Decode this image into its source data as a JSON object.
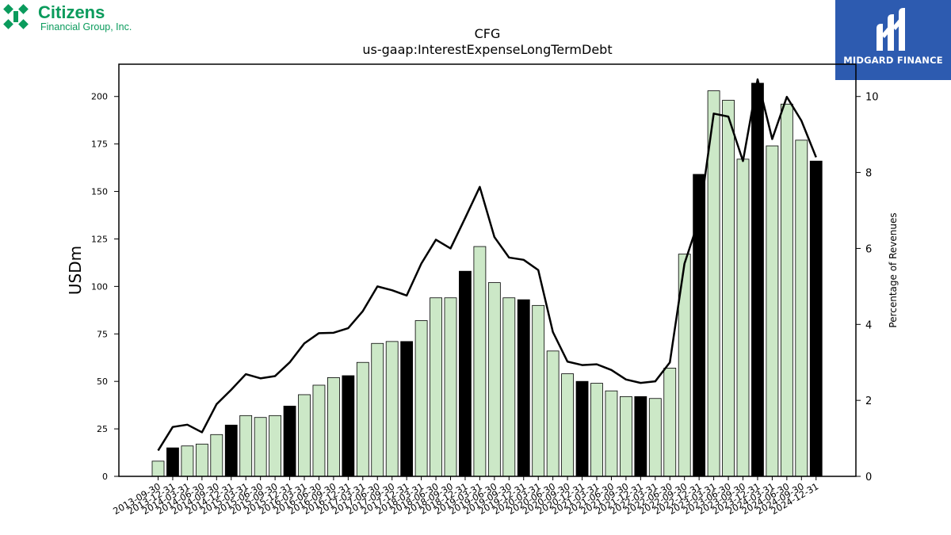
{
  "header": {
    "company_logo": {
      "name": "Citizens",
      "subname": "Financial Group, Inc.",
      "color": "#0a9b5c"
    },
    "brand_badge": {
      "label": "MIDGARD FINANCE",
      "color": "#2d5bb0"
    }
  },
  "chart_data": {
    "type": "bar",
    "title": "CFG",
    "subtitle": "us-gaap:InterestExpenseLongTermDebt",
    "ylabel": "USDm",
    "y2label": "Percentage of Revenues",
    "ylim": [
      0,
      217
    ],
    "y2lim": [
      0,
      10.85
    ],
    "yticks": [
      0,
      25,
      50,
      75,
      100,
      125,
      150,
      175,
      200
    ],
    "y2ticks": [
      0,
      2,
      4,
      6,
      8,
      10
    ],
    "categories": [
      "2013-09-30",
      "2013-12-31",
      "2014-03-31",
      "2014-06-30",
      "2014-09-30",
      "2014-12-31",
      "2015-03-31",
      "2015-06-30",
      "2015-09-30",
      "2015-12-31",
      "2016-03-31",
      "2016-06-30",
      "2016-09-30",
      "2016-12-31",
      "2017-03-31",
      "2017-06-30",
      "2017-09-30",
      "2017-12-31",
      "2018-03-31",
      "2018-06-30",
      "2018-09-30",
      "2018-12-31",
      "2019-03-31",
      "2019-06-30",
      "2019-09-30",
      "2019-12-31",
      "2020-03-31",
      "2020-06-30",
      "2020-09-30",
      "2020-12-31",
      "2021-03-31",
      "2021-06-30",
      "2021-09-30",
      "2021-12-31",
      "2022-03-31",
      "2022-06-30",
      "2022-09-30",
      "2022-12-31",
      "2023-03-31",
      "2023-06-30",
      "2023-09-30",
      "2023-12-31",
      "2024-03-31",
      "2024-06-30",
      "2024-09-30",
      "2024-12-31"
    ],
    "series": [
      {
        "kind": "bar",
        "values": [
          8,
          15,
          16,
          17,
          22,
          27,
          32,
          31,
          32,
          37,
          43,
          48,
          52,
          53,
          60,
          70,
          71,
          71,
          82,
          94,
          94,
          108,
          121,
          102,
          94,
          93,
          90,
          66,
          54,
          50,
          49,
          45,
          42,
          42,
          41,
          57,
          117,
          159,
          203,
          198,
          167,
          207,
          174,
          196,
          177,
          166
        ],
        "highlight_q4_color": "#000000",
        "color": "#cce8c7",
        "edge_color": "#000000"
      },
      {
        "kind": "line",
        "axis": "right",
        "values": [
          0.68,
          1.3,
          1.36,
          1.16,
          1.9,
          2.28,
          2.69,
          2.58,
          2.64,
          3.0,
          3.5,
          3.77,
          3.78,
          3.9,
          4.35,
          5.0,
          4.9,
          4.76,
          5.6,
          6.23,
          6.0,
          6.8,
          7.62,
          6.3,
          5.76,
          5.7,
          5.43,
          3.8,
          3.02,
          2.93,
          2.95,
          2.8,
          2.55,
          2.46,
          2.5,
          3.0,
          5.6,
          6.77,
          9.55,
          9.47,
          8.3,
          10.45,
          8.88,
          9.99,
          9.36,
          8.4
        ],
        "color": "#000000"
      }
    ]
  }
}
